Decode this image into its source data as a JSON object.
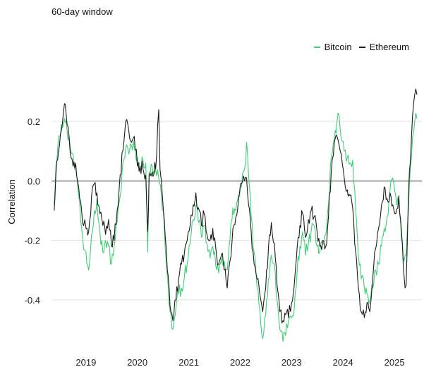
{
  "subtitle": "60-day window",
  "chart_data": {
    "type": "line",
    "title": "",
    "xlabel": "",
    "ylabel": "Correlation",
    "xlim": [
      "2018-05-01",
      "2025-07-15"
    ],
    "ylim": [
      -0.55,
      0.3
    ],
    "y_ticks": [
      {
        "value": 0.2,
        "label": "0.2"
      },
      {
        "value": 0.0,
        "label": "0.0"
      },
      {
        "value": -0.2,
        "label": "-0.2"
      },
      {
        "value": -0.4,
        "label": "-0.4"
      }
    ],
    "x_ticks": [
      {
        "value": "2019-01-01",
        "label": "2019"
      },
      {
        "value": "2020-01-01",
        "label": "2020"
      },
      {
        "value": "2021-01-01",
        "label": "2021"
      },
      {
        "value": "2022-01-01",
        "label": "2022"
      },
      {
        "value": "2023-01-01",
        "label": "2023"
      },
      {
        "value": "2024-01-01",
        "label": "2024"
      },
      {
        "value": "2025-01-01",
        "label": "2025"
      }
    ],
    "grid": "horizontal",
    "zero_line": true,
    "legend": "top-right",
    "series": [
      {
        "name": "Bitcoin",
        "color": "#3ecf76",
        "points": [
          [
            "2018-05-20",
            -0.08
          ],
          [
            "2018-06-01",
            0.05
          ],
          [
            "2018-06-20",
            0.15
          ],
          [
            "2018-07-10",
            0.19
          ],
          [
            "2018-08-01",
            0.21
          ],
          [
            "2018-08-20",
            0.17
          ],
          [
            "2018-09-10",
            0.12
          ],
          [
            "2018-10-01",
            0.09
          ],
          [
            "2018-10-20",
            0.04
          ],
          [
            "2018-11-10",
            -0.05
          ],
          [
            "2018-12-01",
            -0.16
          ],
          [
            "2018-12-15",
            -0.23
          ],
          [
            "2019-01-01",
            -0.24
          ],
          [
            "2019-01-20",
            -0.3
          ],
          [
            "2019-02-10",
            -0.18
          ],
          [
            "2019-03-01",
            -0.1
          ],
          [
            "2019-03-20",
            -0.06
          ],
          [
            "2019-04-10",
            -0.17
          ],
          [
            "2019-05-01",
            -0.24
          ],
          [
            "2019-05-20",
            -0.2
          ],
          [
            "2019-06-10",
            -0.22
          ],
          [
            "2019-07-01",
            -0.28
          ],
          [
            "2019-07-20",
            -0.22
          ],
          [
            "2019-08-10",
            -0.14
          ],
          [
            "2019-09-01",
            -0.05
          ],
          [
            "2019-09-20",
            0.06
          ],
          [
            "2019-10-10",
            0.11
          ],
          [
            "2019-11-01",
            0.09
          ],
          [
            "2019-11-20",
            0.12
          ],
          [
            "2019-12-10",
            0.11
          ],
          [
            "2020-01-01",
            0.08
          ],
          [
            "2020-01-20",
            0.04
          ],
          [
            "2020-02-10",
            0.07
          ],
          [
            "2020-03-01",
            0.06
          ],
          [
            "2020-03-15",
            -0.24
          ],
          [
            "2020-03-25",
            0.03
          ],
          [
            "2020-04-15",
            0.05
          ],
          [
            "2020-05-10",
            0.04
          ],
          [
            "2020-06-01",
            0.01
          ],
          [
            "2020-06-20",
            -0.05
          ],
          [
            "2020-07-10",
            -0.15
          ],
          [
            "2020-08-01",
            -0.32
          ],
          [
            "2020-08-20",
            -0.44
          ],
          [
            "2020-09-10",
            -0.5
          ],
          [
            "2020-10-01",
            -0.43
          ],
          [
            "2020-10-20",
            -0.38
          ],
          [
            "2020-11-10",
            -0.36
          ],
          [
            "2020-12-01",
            -0.32
          ],
          [
            "2020-12-20",
            -0.28
          ],
          [
            "2021-01-10",
            -0.21
          ],
          [
            "2021-02-01",
            -0.13
          ],
          [
            "2021-02-20",
            -0.08
          ],
          [
            "2021-03-10",
            -0.14
          ],
          [
            "2021-04-01",
            -0.19
          ],
          [
            "2021-04-20",
            -0.15
          ],
          [
            "2021-05-10",
            -0.21
          ],
          [
            "2021-06-01",
            -0.26
          ],
          [
            "2021-06-20",
            -0.22
          ],
          [
            "2021-07-10",
            -0.28
          ],
          [
            "2021-08-01",
            -0.31
          ],
          [
            "2021-08-20",
            -0.26
          ],
          [
            "2021-09-10",
            -0.27
          ],
          [
            "2021-10-01",
            -0.3
          ],
          [
            "2021-10-20",
            -0.2
          ],
          [
            "2021-11-10",
            -0.09
          ],
          [
            "2021-12-01",
            -0.1
          ],
          [
            "2021-12-20",
            -0.05
          ],
          [
            "2022-01-10",
            -0.02
          ],
          [
            "2022-02-01",
            0.04
          ],
          [
            "2022-02-15",
            0.13
          ],
          [
            "2022-03-01",
            0.02
          ],
          [
            "2022-03-20",
            -0.12
          ],
          [
            "2022-04-10",
            -0.24
          ],
          [
            "2022-05-01",
            -0.36
          ],
          [
            "2022-05-20",
            -0.43
          ],
          [
            "2022-06-10",
            -0.53
          ],
          [
            "2022-07-01",
            -0.45
          ],
          [
            "2022-07-20",
            -0.33
          ],
          [
            "2022-08-10",
            -0.25
          ],
          [
            "2022-09-01",
            -0.28
          ],
          [
            "2022-09-20",
            -0.4
          ],
          [
            "2022-10-10",
            -0.5
          ],
          [
            "2022-11-01",
            -0.54
          ],
          [
            "2022-11-20",
            -0.52
          ],
          [
            "2022-12-10",
            -0.47
          ],
          [
            "2023-01-01",
            -0.46
          ],
          [
            "2023-01-20",
            -0.43
          ],
          [
            "2023-02-10",
            -0.3
          ],
          [
            "2023-03-01",
            -0.22
          ],
          [
            "2023-03-20",
            -0.17
          ],
          [
            "2023-04-10",
            -0.25
          ],
          [
            "2023-05-01",
            -0.21
          ],
          [
            "2023-05-20",
            -0.17
          ],
          [
            "2023-06-10",
            -0.15
          ],
          [
            "2023-07-01",
            -0.22
          ],
          [
            "2023-07-20",
            -0.24
          ],
          [
            "2023-08-10",
            -0.21
          ],
          [
            "2023-09-01",
            -0.18
          ],
          [
            "2023-09-20",
            -0.08
          ],
          [
            "2023-10-10",
            0.08
          ],
          [
            "2023-11-01",
            0.14
          ],
          [
            "2023-11-20",
            0.2
          ],
          [
            "2023-12-05",
            0.22
          ],
          [
            "2023-12-20",
            0.14
          ],
          [
            "2024-01-10",
            0.1
          ],
          [
            "2024-02-01",
            0.08
          ],
          [
            "2024-02-20",
            0.06
          ],
          [
            "2024-03-10",
            0.07
          ],
          [
            "2024-04-01",
            -0.1
          ],
          [
            "2024-04-20",
            -0.25
          ],
          [
            "2024-05-10",
            -0.33
          ],
          [
            "2024-06-01",
            -0.36
          ],
          [
            "2024-06-20",
            -0.38
          ],
          [
            "2024-07-10",
            -0.4
          ],
          [
            "2024-08-01",
            -0.36
          ],
          [
            "2024-08-20",
            -0.3
          ],
          [
            "2024-09-10",
            -0.28
          ],
          [
            "2024-10-01",
            -0.22
          ],
          [
            "2024-10-20",
            -0.16
          ],
          [
            "2024-11-10",
            -0.12
          ],
          [
            "2024-12-01",
            -0.03
          ],
          [
            "2024-12-20",
            0.01
          ],
          [
            "2025-01-10",
            -0.05
          ],
          [
            "2025-02-01",
            -0.08
          ],
          [
            "2025-02-20",
            -0.2
          ],
          [
            "2025-03-10",
            -0.27
          ],
          [
            "2025-03-25",
            -0.25
          ],
          [
            "2025-04-10",
            -0.1
          ],
          [
            "2025-04-25",
            0.05
          ],
          [
            "2025-05-10",
            0.15
          ],
          [
            "2025-05-25",
            0.2
          ],
          [
            "2025-06-10",
            0.21
          ]
        ]
      },
      {
        "name": "Ethereum",
        "color": "#1c1c1c",
        "points": [
          [
            "2018-05-20",
            -0.1
          ],
          [
            "2018-06-01",
            0.02
          ],
          [
            "2018-06-20",
            0.1
          ],
          [
            "2018-07-10",
            0.17
          ],
          [
            "2018-08-01",
            0.26
          ],
          [
            "2018-08-20",
            0.19
          ],
          [
            "2018-09-10",
            0.1
          ],
          [
            "2018-10-01",
            0.05
          ],
          [
            "2018-10-20",
            0.06
          ],
          [
            "2018-11-10",
            -0.02
          ],
          [
            "2018-12-01",
            -0.1
          ],
          [
            "2018-12-15",
            -0.15
          ],
          [
            "2019-01-01",
            -0.16
          ],
          [
            "2019-01-20",
            -0.17
          ],
          [
            "2019-02-10",
            -0.05
          ],
          [
            "2019-03-01",
            -0.01
          ],
          [
            "2019-03-20",
            -0.04
          ],
          [
            "2019-04-10",
            -0.11
          ],
          [
            "2019-05-01",
            -0.15
          ],
          [
            "2019-05-20",
            -0.18
          ],
          [
            "2019-06-10",
            -0.13
          ],
          [
            "2019-07-01",
            -0.22
          ],
          [
            "2019-07-20",
            -0.2
          ],
          [
            "2019-08-10",
            -0.1
          ],
          [
            "2019-09-01",
            0.02
          ],
          [
            "2019-09-20",
            0.1
          ],
          [
            "2019-10-10",
            0.2
          ],
          [
            "2019-11-01",
            0.17
          ],
          [
            "2019-11-20",
            0.13
          ],
          [
            "2019-12-10",
            0.15
          ],
          [
            "2020-01-01",
            0.05
          ],
          [
            "2020-01-20",
            0.05
          ],
          [
            "2020-02-10",
            0.04
          ],
          [
            "2020-03-01",
            0.02
          ],
          [
            "2020-03-15",
            -0.17
          ],
          [
            "2020-03-25",
            0.02
          ],
          [
            "2020-04-15",
            0.03
          ],
          [
            "2020-05-10",
            0.04
          ],
          [
            "2020-06-01",
            0.24
          ],
          [
            "2020-06-10",
            0.04
          ],
          [
            "2020-06-20",
            0.0
          ],
          [
            "2020-07-10",
            -0.13
          ],
          [
            "2020-08-01",
            -0.3
          ],
          [
            "2020-08-20",
            -0.42
          ],
          [
            "2020-09-10",
            -0.47
          ],
          [
            "2020-10-01",
            -0.4
          ],
          [
            "2020-10-20",
            -0.33
          ],
          [
            "2020-11-10",
            -0.28
          ],
          [
            "2020-12-01",
            -0.24
          ],
          [
            "2020-12-20",
            -0.2
          ],
          [
            "2021-01-10",
            -0.15
          ],
          [
            "2021-02-01",
            -0.08
          ],
          [
            "2021-02-20",
            -0.04
          ],
          [
            "2021-03-10",
            -0.09
          ],
          [
            "2021-04-01",
            -0.15
          ],
          [
            "2021-04-20",
            -0.11
          ],
          [
            "2021-05-10",
            -0.18
          ],
          [
            "2021-06-01",
            -0.2
          ],
          [
            "2021-06-20",
            -0.16
          ],
          [
            "2021-07-10",
            -0.22
          ],
          [
            "2021-08-01",
            -0.28
          ],
          [
            "2021-08-20",
            -0.25
          ],
          [
            "2021-09-10",
            -0.3
          ],
          [
            "2021-10-01",
            -0.36
          ],
          [
            "2021-10-20",
            -0.27
          ],
          [
            "2021-11-10",
            -0.16
          ],
          [
            "2021-12-01",
            -0.12
          ],
          [
            "2021-12-20",
            -0.06
          ],
          [
            "2022-01-10",
            -0.01
          ],
          [
            "2022-02-01",
            0.0
          ],
          [
            "2022-02-15",
            0.01
          ],
          [
            "2022-03-01",
            -0.08
          ],
          [
            "2022-03-20",
            -0.17
          ],
          [
            "2022-04-10",
            -0.28
          ],
          [
            "2022-05-01",
            -0.33
          ],
          [
            "2022-05-20",
            -0.38
          ],
          [
            "2022-06-10",
            -0.44
          ],
          [
            "2022-07-01",
            -0.36
          ],
          [
            "2022-07-20",
            -0.23
          ],
          [
            "2022-08-10",
            -0.14
          ],
          [
            "2022-09-01",
            -0.21
          ],
          [
            "2022-09-20",
            -0.35
          ],
          [
            "2022-10-10",
            -0.44
          ],
          [
            "2022-11-01",
            -0.47
          ],
          [
            "2022-11-20",
            -0.45
          ],
          [
            "2022-12-10",
            -0.46
          ],
          [
            "2023-01-01",
            -0.41
          ],
          [
            "2023-01-20",
            -0.35
          ],
          [
            "2023-02-10",
            -0.22
          ],
          [
            "2023-03-01",
            -0.15
          ],
          [
            "2023-03-20",
            -0.11
          ],
          [
            "2023-04-10",
            -0.19
          ],
          [
            "2023-05-01",
            -0.13
          ],
          [
            "2023-05-20",
            -0.1
          ],
          [
            "2023-06-10",
            -0.12
          ],
          [
            "2023-07-01",
            -0.17
          ],
          [
            "2023-07-20",
            -0.22
          ],
          [
            "2023-08-10",
            -0.2
          ],
          [
            "2023-09-01",
            -0.22
          ],
          [
            "2023-09-20",
            -0.12
          ],
          [
            "2023-10-10",
            0.03
          ],
          [
            "2023-11-01",
            0.13
          ],
          [
            "2023-11-20",
            0.15
          ],
          [
            "2023-12-05",
            0.12
          ],
          [
            "2023-12-20",
            0.09
          ],
          [
            "2024-01-10",
            0.01
          ],
          [
            "2024-02-01",
            -0.03
          ],
          [
            "2024-02-20",
            -0.05
          ],
          [
            "2024-03-10",
            -0.09
          ],
          [
            "2024-04-01",
            -0.24
          ],
          [
            "2024-04-20",
            -0.36
          ],
          [
            "2024-05-10",
            -0.44
          ],
          [
            "2024-06-01",
            -0.46
          ],
          [
            "2024-06-20",
            -0.41
          ],
          [
            "2024-07-10",
            -0.44
          ],
          [
            "2024-08-01",
            -0.32
          ],
          [
            "2024-08-20",
            -0.23
          ],
          [
            "2024-09-10",
            -0.16
          ],
          [
            "2024-10-01",
            -0.08
          ],
          [
            "2024-10-20",
            -0.02
          ],
          [
            "2024-11-10",
            -0.06
          ],
          [
            "2024-12-01",
            -0.04
          ],
          [
            "2024-12-20",
            -0.08
          ],
          [
            "2025-01-10",
            -0.11
          ],
          [
            "2025-02-01",
            -0.05
          ],
          [
            "2025-02-20",
            -0.17
          ],
          [
            "2025-03-10",
            -0.32
          ],
          [
            "2025-03-25",
            -0.35
          ],
          [
            "2025-04-10",
            -0.05
          ],
          [
            "2025-04-25",
            0.07
          ],
          [
            "2025-05-10",
            0.22
          ],
          [
            "2025-05-25",
            0.29
          ],
          [
            "2025-06-10",
            0.29
          ]
        ]
      }
    ]
  }
}
